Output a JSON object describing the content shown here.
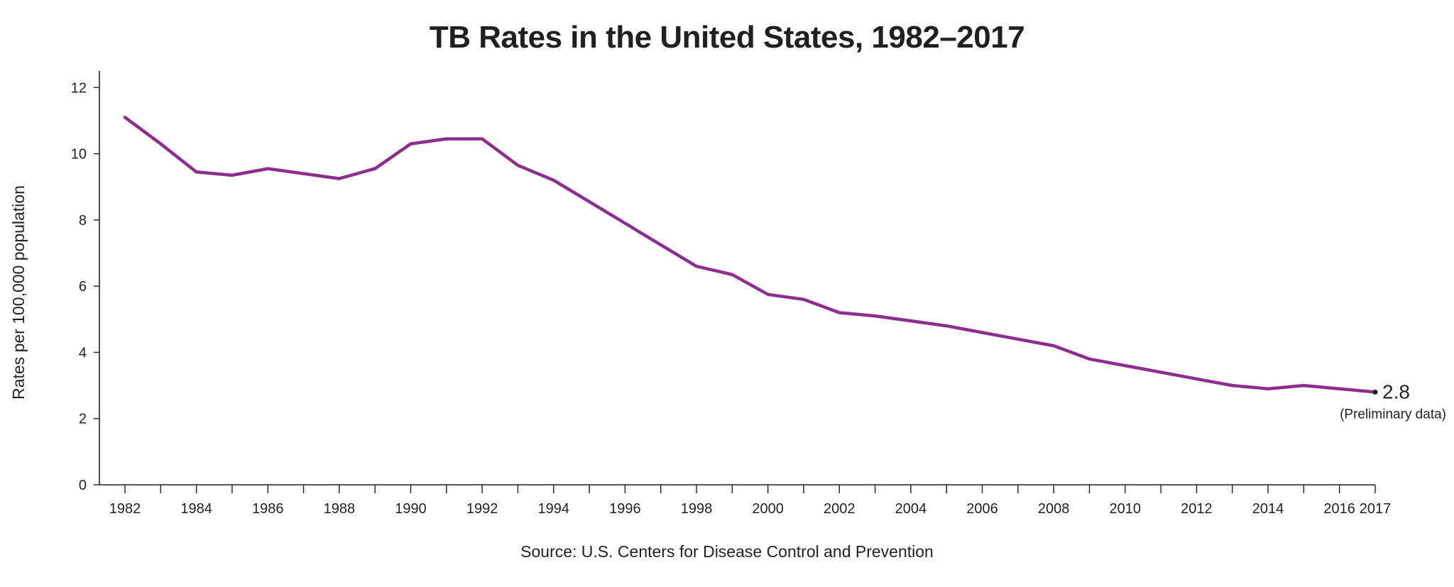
{
  "chart_data": {
    "type": "line",
    "title": "TB Rates in the United States, 1982–2017",
    "ylabel": "Rates per 100,000 population",
    "xlabel": "",
    "source": "Source: U.S. Centers for Disease Control and Prevention",
    "xlim": [
      1982,
      2017
    ],
    "ylim": [
      0,
      12.5
    ],
    "y_ticks": [
      0,
      2,
      4,
      6,
      8,
      10,
      12
    ],
    "x_tick_labels": [
      "1982",
      "1984",
      "1986",
      "1988",
      "1990",
      "1992",
      "1994",
      "1996",
      "1998",
      "2000",
      "2002",
      "2004",
      "2006",
      "2008",
      "2010",
      "2012",
      "2014",
      "2016",
      "2017"
    ],
    "grid": false,
    "legend": "none",
    "line_color": "#8e2c8f",
    "x": [
      1982,
      1983,
      1984,
      1985,
      1986,
      1987,
      1988,
      1989,
      1990,
      1991,
      1992,
      1993,
      1994,
      1995,
      1996,
      1997,
      1998,
      1999,
      2000,
      2001,
      2002,
      2003,
      2004,
      2005,
      2006,
      2007,
      2008,
      2009,
      2010,
      2011,
      2012,
      2013,
      2014,
      2015,
      2016,
      2017
    ],
    "y": [
      11.1,
      10.3,
      9.45,
      9.35,
      9.55,
      9.4,
      9.25,
      9.55,
      10.3,
      10.45,
      10.45,
      9.65,
      9.2,
      8.55,
      7.9,
      7.25,
      6.6,
      6.35,
      5.75,
      5.6,
      5.2,
      5.1,
      4.95,
      4.8,
      4.6,
      4.4,
      4.2,
      3.8,
      3.6,
      3.4,
      3.2,
      3.0,
      2.9,
      3.0,
      2.9,
      2.8
    ],
    "end_annotation": {
      "value": "2.8",
      "note": "(Preliminary data)"
    }
  }
}
